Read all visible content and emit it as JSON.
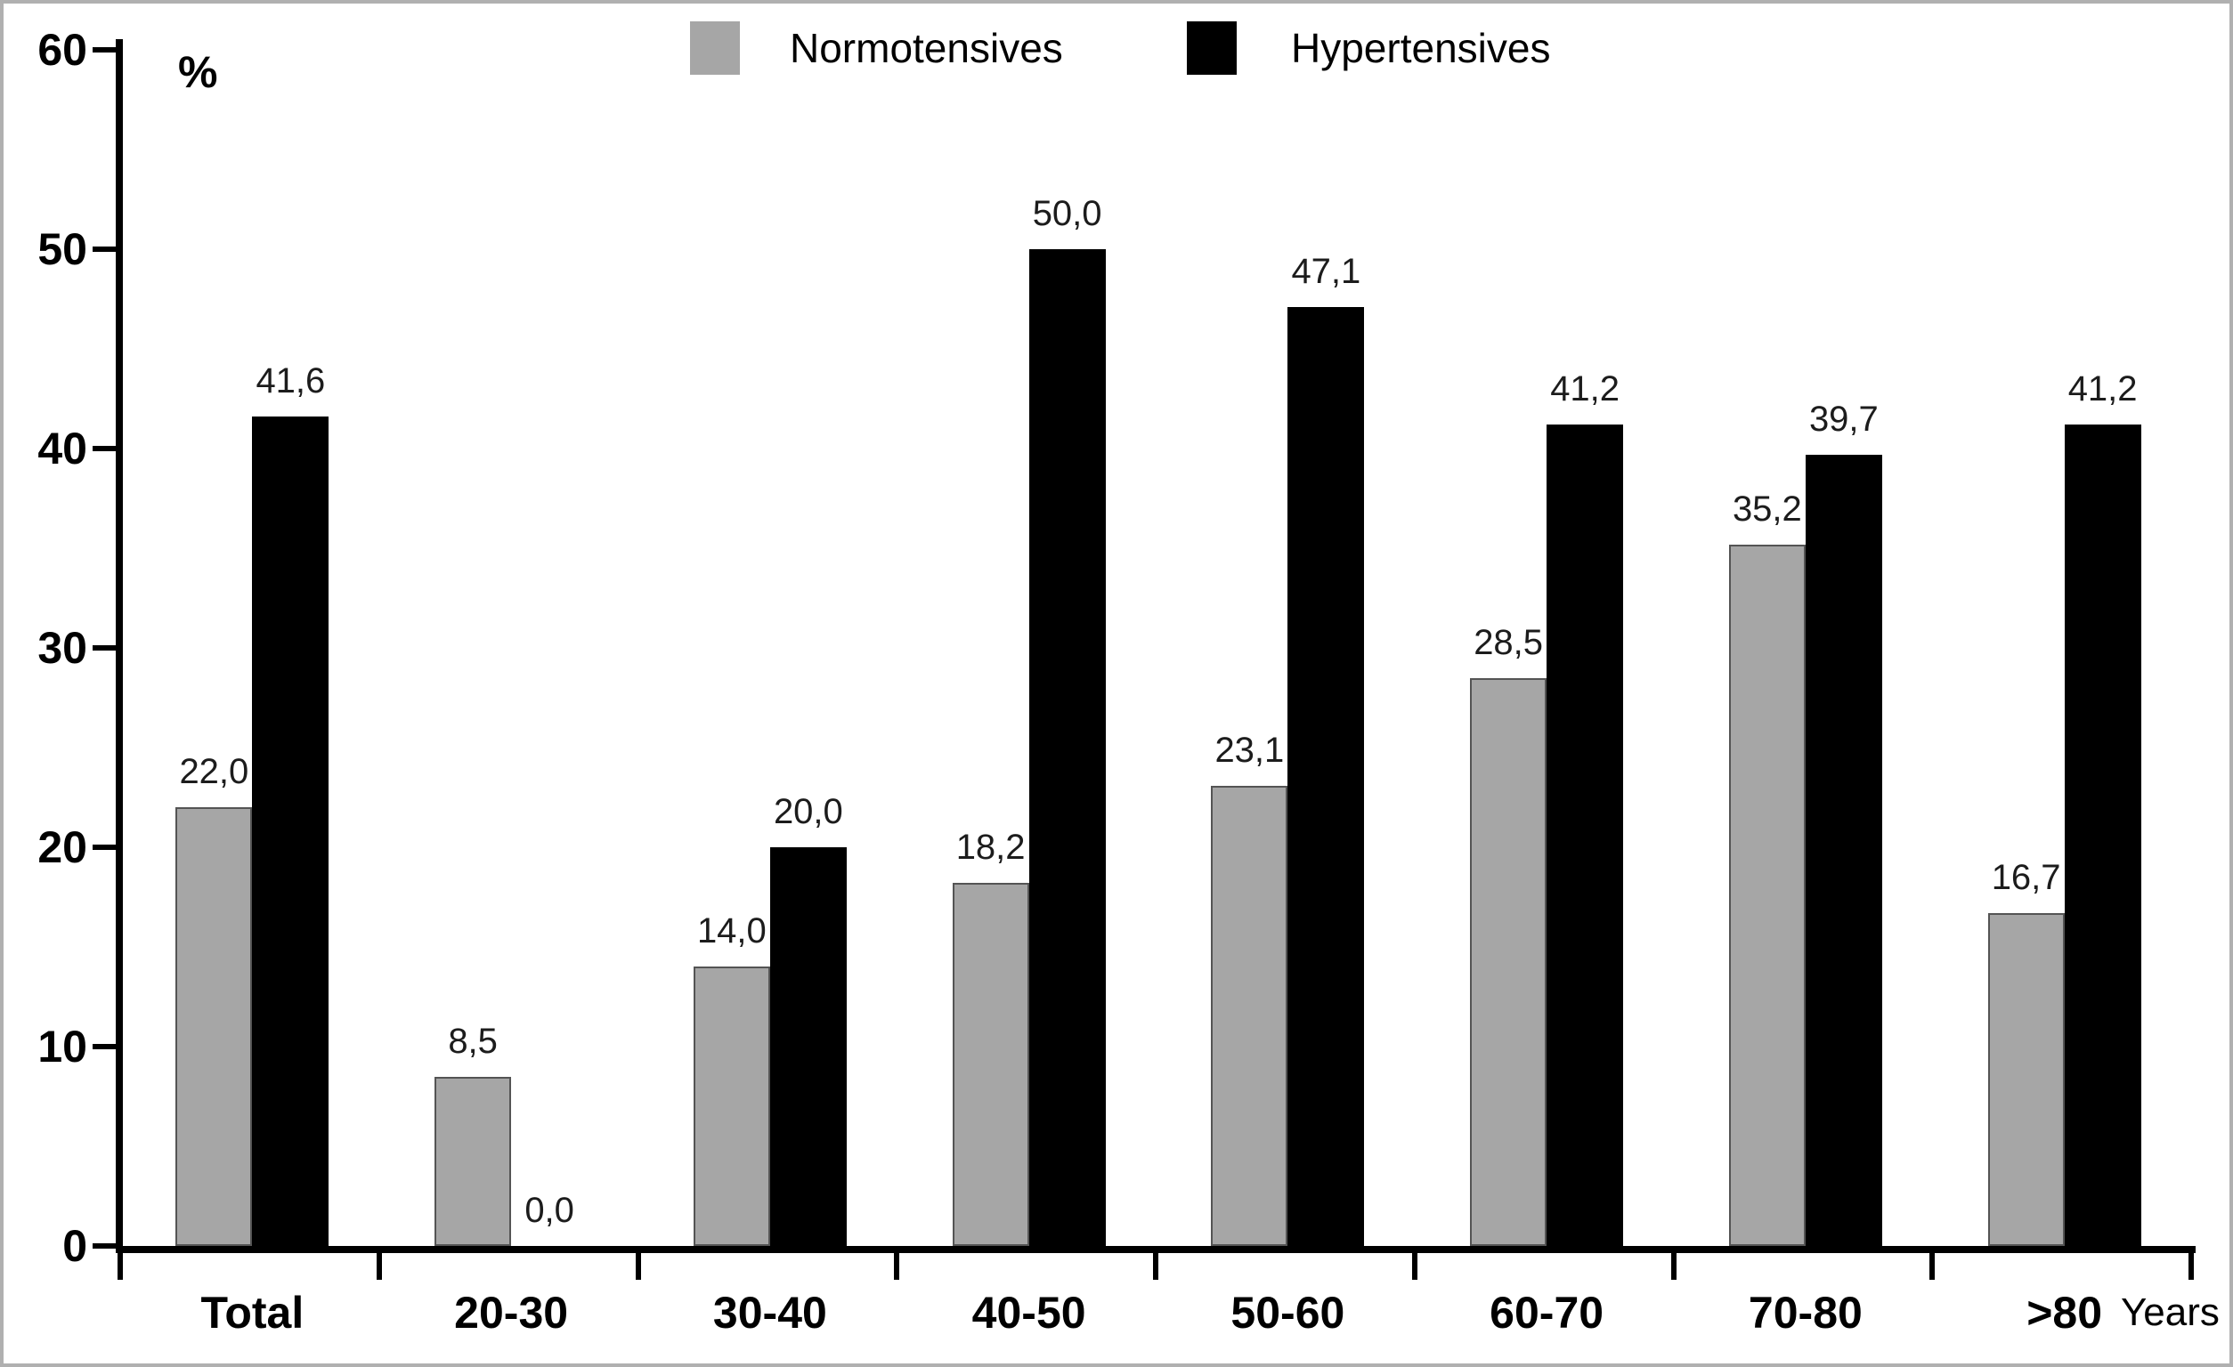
{
  "chart_data": {
    "type": "bar",
    "title": "",
    "categories": [
      "Total",
      "20-30",
      "30-40",
      "40-50",
      "50-60",
      "60-70",
      "70-80",
      ">80"
    ],
    "series": [
      {
        "name": "Normotensives",
        "color": "#a6a6a6",
        "border_color": "#545454",
        "values": [
          22.0,
          8.5,
          14.0,
          18.2,
          23.1,
          28.5,
          35.2,
          16.7
        ],
        "labels": [
          "22,0",
          "8,5",
          "14,0",
          "18,2",
          "23,1",
          "28,5",
          "35,2",
          "16,7"
        ]
      },
      {
        "name": "Hypertensives",
        "color": "#000000",
        "border_color": "#000000",
        "values": [
          41.6,
          0.0,
          20.0,
          50.0,
          47.1,
          41.2,
          39.7,
          41.2
        ],
        "labels": [
          "41,6",
          "0,0",
          "20,0",
          "50,0",
          "47,1",
          "41,2",
          "39,7",
          "41,2"
        ]
      }
    ],
    "ylabel": "%",
    "xlabel": "Years",
    "ylim": [
      0,
      60
    ],
    "yticks": [
      0,
      10,
      20,
      30,
      40,
      50,
      60
    ],
    "grid": false,
    "legend_position": "top-center",
    "value_label_decimal_separator": ",",
    "background_color": "#ffffff",
    "frame_color": "#b0b0b0"
  }
}
